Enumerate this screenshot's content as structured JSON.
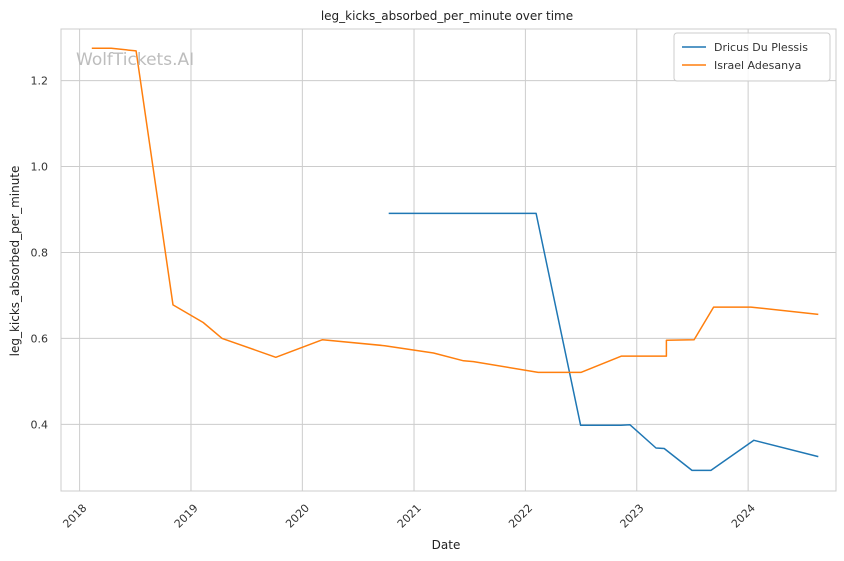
{
  "chart_data": {
    "type": "line",
    "title": "leg_kicks_absorbed_per_minute over time",
    "xlabel": "Date",
    "ylabel": "leg_kicks_absorbed_per_minute",
    "x_type": "date",
    "xlim": [
      "2017-11-01",
      "2024-10-15"
    ],
    "ylim": [
      0.245,
      1.32
    ],
    "x_ticks": [
      "2018-01-01",
      "2019-01-01",
      "2020-01-01",
      "2021-01-01",
      "2022-01-01",
      "2023-01-01",
      "2024-01-01"
    ],
    "x_tick_labels": [
      "2018",
      "2019",
      "2020",
      "2021",
      "2022",
      "2023",
      "2024"
    ],
    "y_ticks": [
      0.4,
      0.6,
      0.8,
      1.0,
      1.2
    ],
    "y_tick_labels": [
      "0.4",
      "0.6",
      "0.8",
      "1.0",
      "1.2"
    ],
    "grid": true,
    "legend_position": "top-right",
    "watermark": "WolfTickets.AI",
    "series": [
      {
        "name": "Dricus Du Plessis",
        "color": "#1f77b4",
        "points": [
          {
            "x": "2020-10-10",
            "y": 0.891
          },
          {
            "x": "2022-02-05",
            "y": 0.891
          },
          {
            "x": "2022-07-01",
            "y": 0.398
          },
          {
            "x": "2022-11-10",
            "y": 0.398
          },
          {
            "x": "2022-12-10",
            "y": 0.399
          },
          {
            "x": "2023-03-05",
            "y": 0.345
          },
          {
            "x": "2023-04-01",
            "y": 0.344
          },
          {
            "x": "2023-07-01",
            "y": 0.293
          },
          {
            "x": "2023-09-01",
            "y": 0.293
          },
          {
            "x": "2024-01-20",
            "y": 0.363
          },
          {
            "x": "2024-08-18",
            "y": 0.325
          }
        ]
      },
      {
        "name": "Israel Adesanya",
        "color": "#ff7f0e",
        "points": [
          {
            "x": "2018-02-10",
            "y": 1.275
          },
          {
            "x": "2018-04-15",
            "y": 1.275
          },
          {
            "x": "2018-07-05",
            "y": 1.269
          },
          {
            "x": "2018-11-03",
            "y": 0.678
          },
          {
            "x": "2019-02-10",
            "y": 0.637
          },
          {
            "x": "2019-04-13",
            "y": 0.6
          },
          {
            "x": "2019-10-06",
            "y": 0.556
          },
          {
            "x": "2020-03-07",
            "y": 0.597
          },
          {
            "x": "2020-09-27",
            "y": 0.583
          },
          {
            "x": "2021-03-06",
            "y": 0.566
          },
          {
            "x": "2021-06-12",
            "y": 0.548
          },
          {
            "x": "2021-07-15",
            "y": 0.546
          },
          {
            "x": "2022-02-12",
            "y": 0.521
          },
          {
            "x": "2022-07-02",
            "y": 0.521
          },
          {
            "x": "2022-11-12",
            "y": 0.559
          },
          {
            "x": "2023-04-08",
            "y": 0.559
          },
          {
            "x": "2023-04-08",
            "y": 0.596
          },
          {
            "x": "2023-07-08",
            "y": 0.597
          },
          {
            "x": "2023-09-10",
            "y": 0.673
          },
          {
            "x": "2024-01-10",
            "y": 0.673
          },
          {
            "x": "2024-08-18",
            "y": 0.656
          }
        ]
      }
    ]
  }
}
